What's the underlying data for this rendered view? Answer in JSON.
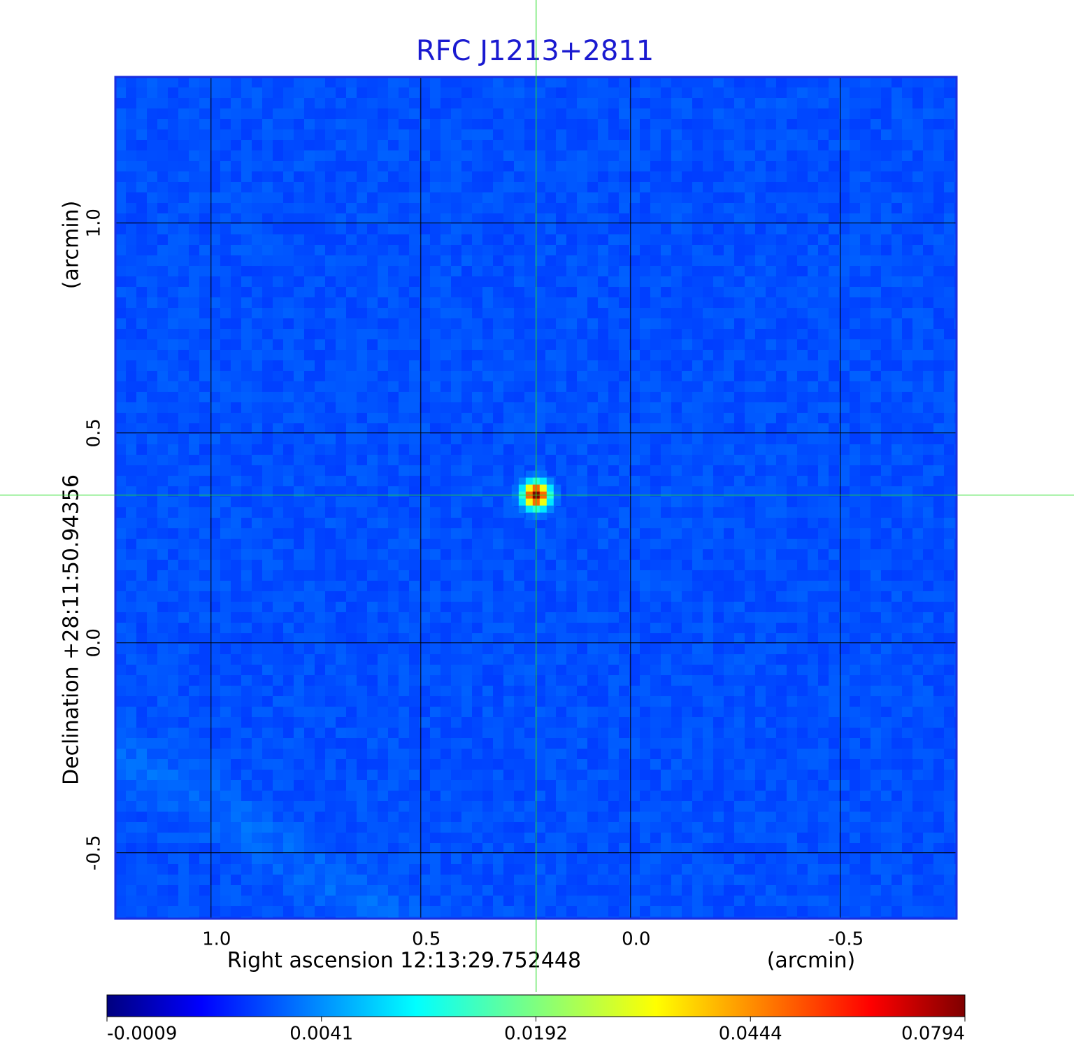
{
  "chart_data": {
    "type": "image",
    "title": "RFC J1213+2811",
    "xlabel": "Right ascension  12:13:29.752448",
    "xunit": "(arcmin)",
    "ylabel": "Declination  +28:11:50.94356",
    "yunit": "(arcmin)",
    "xlim": [
      1.228,
      -0.777
    ],
    "ylim": [
      -0.657,
      1.348
    ],
    "xticks": [
      {
        "value": 1,
        "label": "1.0"
      },
      0.5,
      {
        "value": 0,
        "label": "0.0"
      },
      -0.5
    ],
    "yticks": [
      -0.5,
      {
        "value": 0,
        "label": "0.0"
      },
      0.5,
      {
        "value": 1,
        "label": "1.0"
      }
    ],
    "grid": true,
    "colorbar_ticks": [
      -0.0009,
      0.0041,
      0.0192,
      0.0444,
      0.0794
    ],
    "sources": [
      {
        "x": 0.225,
        "y": 0.352,
        "peak": 0.0794
      }
    ]
  }
}
